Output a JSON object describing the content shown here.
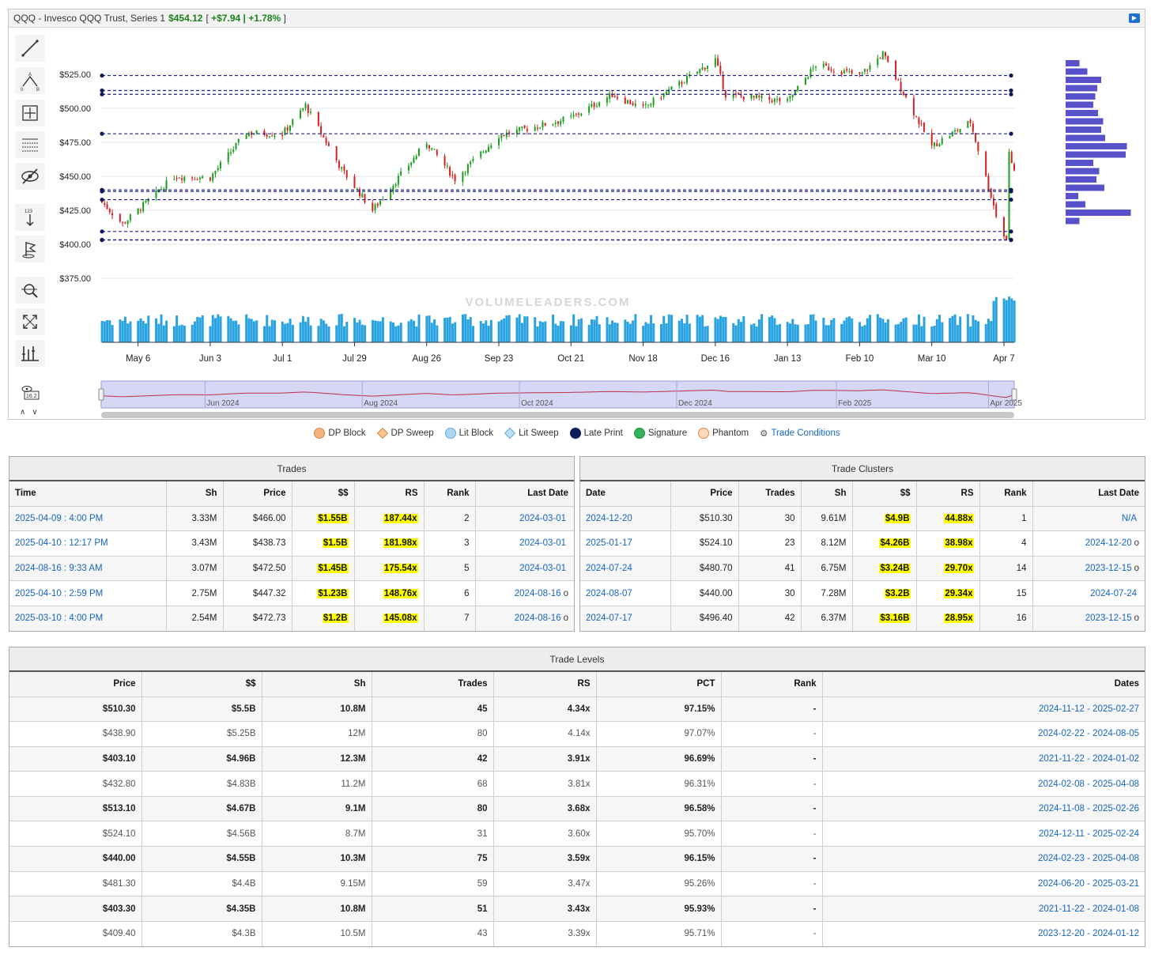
{
  "header": {
    "symbol": "QQQ - Invesco QQQ Trust, Series 1",
    "price": "$454.12",
    "change_prefix": "[ ",
    "change": "+$7.94 | +1.78%",
    "change_suffix": " ]"
  },
  "watermark": "VOLUMELEADERS.COM",
  "chart_data": {
    "type": "candlestick",
    "y_ticks": [
      "$525.00",
      "$500.00",
      "$475.00",
      "$450.00",
      "$425.00",
      "$400.00",
      "$375.00"
    ],
    "ylim": [
      375,
      540
    ],
    "x_ticks": [
      "May 6",
      "Jun 3",
      "Jul 1",
      "Jul 29",
      "Aug 26",
      "Sep 23",
      "Oct 21",
      "Nov 18",
      "Dec 16",
      "Jan 13",
      "Feb 10",
      "Mar 10",
      "Apr 7"
    ],
    "price_path": [
      {
        "date": "2024-04-22",
        "close": 431
      },
      {
        "date": "2024-04-30",
        "close": 415
      },
      {
        "date": "2024-05-06",
        "close": 425
      },
      {
        "date": "2024-05-20",
        "close": 450
      },
      {
        "date": "2024-06-03",
        "close": 449
      },
      {
        "date": "2024-06-17",
        "close": 482
      },
      {
        "date": "2024-07-01",
        "close": 481
      },
      {
        "date": "2024-07-10",
        "close": 502
      },
      {
        "date": "2024-07-24",
        "close": 455
      },
      {
        "date": "2024-08-05",
        "close": 425
      },
      {
        "date": "2024-08-26",
        "close": 475
      },
      {
        "date": "2024-09-06",
        "close": 448
      },
      {
        "date": "2024-09-23",
        "close": 480
      },
      {
        "date": "2024-10-21",
        "close": 493
      },
      {
        "date": "2024-11-06",
        "close": 510
      },
      {
        "date": "2024-11-18",
        "close": 500
      },
      {
        "date": "2024-12-16",
        "close": 536
      },
      {
        "date": "2024-12-20",
        "close": 510
      },
      {
        "date": "2025-01-13",
        "close": 505
      },
      {
        "date": "2025-01-24",
        "close": 532
      },
      {
        "date": "2025-02-10",
        "close": 524
      },
      {
        "date": "2025-02-19",
        "close": 540
      },
      {
        "date": "2025-03-10",
        "close": 472
      },
      {
        "date": "2025-03-25",
        "close": 490
      },
      {
        "date": "2025-04-04",
        "close": 422
      },
      {
        "date": "2025-04-08",
        "close": 403
      },
      {
        "date": "2025-04-09",
        "close": 466
      },
      {
        "date": "2025-04-11",
        "close": 454
      }
    ],
    "levels": [
      524.1,
      513.1,
      510.3,
      481.3,
      440.0,
      438.9,
      432.8,
      409.4,
      403.3,
      403.1
    ],
    "volume_profile": [
      0.35,
      0.55,
      0.9,
      0.8,
      0.75,
      0.7,
      0.82,
      0.95,
      0.9,
      1.0,
      1.55,
      1.52,
      0.7,
      0.85,
      0.78,
      0.98,
      0.32,
      0.5,
      1.65,
      0.35
    ],
    "overview_ticks": [
      "Jun 2024",
      "Aug 2024",
      "Oct 2024",
      "Dec 2024",
      "Feb 2025",
      "Apr 2025"
    ]
  },
  "legend": {
    "dp_block": "DP Block",
    "dp_sweep": "DP Sweep",
    "lit_block": "Lit Block",
    "lit_sweep": "Lit Sweep",
    "late_print": "Late Print",
    "signature": "Signature",
    "phantom": "Phantom",
    "trade_conditions": "Trade Conditions",
    "colors": {
      "dp_block": "#f5b27a",
      "dp_sweep": "#f7c48c",
      "lit_block": "#a8d6f5",
      "lit_sweep": "#b8e0f7",
      "late_print": "#0b1a5a",
      "signature": "#35b35a",
      "phantom": "#f5b27a"
    }
  },
  "trades": {
    "title": "Trades",
    "columns": [
      "Time",
      "Sh",
      "Price",
      "$$",
      "RS",
      "Rank",
      "Last Date"
    ],
    "rows": [
      {
        "time": "2025-04-09 : 4:00 PM",
        "sh": "3.33M",
        "price": "$466.00",
        "dollars": "$1.55B",
        "rs": "187.44x",
        "rank": "2",
        "last": "2024-03-01",
        "suffix": ""
      },
      {
        "time": "2025-04-10 : 12:17 PM",
        "sh": "3.43M",
        "price": "$438.73",
        "dollars": "$1.5B",
        "rs": "181.98x",
        "rank": "3",
        "last": "2024-03-01",
        "suffix": ""
      },
      {
        "time": "2024-08-16 : 9:33 AM",
        "sh": "3.07M",
        "price": "$472.50",
        "dollars": "$1.45B",
        "rs": "175.54x",
        "rank": "5",
        "last": "2024-03-01",
        "suffix": ""
      },
      {
        "time": "2025-04-10 : 2:59 PM",
        "sh": "2.75M",
        "price": "$447.32",
        "dollars": "$1.23B",
        "rs": "148.76x",
        "rank": "6",
        "last": "2024-08-16",
        "suffix": "o"
      },
      {
        "time": "2025-03-10 : 4:00 PM",
        "sh": "2.54M",
        "price": "$472.73",
        "dollars": "$1.2B",
        "rs": "145.08x",
        "rank": "7",
        "last": "2024-08-16",
        "suffix": "o"
      }
    ]
  },
  "clusters": {
    "title": "Trade Clusters",
    "columns": [
      "Date",
      "Price",
      "Trades",
      "Sh",
      "$$",
      "RS",
      "Rank",
      "Last Date"
    ],
    "rows": [
      {
        "date": "2024-12-20",
        "price": "$510.30",
        "trades": "30",
        "sh": "9.61M",
        "dollars": "$4.9B",
        "rs": "44.88x",
        "rank": "1",
        "last": "N/A",
        "suffix": ""
      },
      {
        "date": "2025-01-17",
        "price": "$524.10",
        "trades": "23",
        "sh": "8.12M",
        "dollars": "$4.26B",
        "rs": "38.98x",
        "rank": "4",
        "last": "2024-12-20",
        "suffix": "o"
      },
      {
        "date": "2024-07-24",
        "price": "$480.70",
        "trades": "41",
        "sh": "6.75M",
        "dollars": "$3.24B",
        "rs": "29.70x",
        "rank": "14",
        "last": "2023-12-15",
        "suffix": "o"
      },
      {
        "date": "2024-08-07",
        "price": "$440.00",
        "trades": "30",
        "sh": "7.28M",
        "dollars": "$3.2B",
        "rs": "29.34x",
        "rank": "15",
        "last": "2024-07-24",
        "suffix": ""
      },
      {
        "date": "2024-07-17",
        "price": "$496.40",
        "trades": "42",
        "sh": "6.37M",
        "dollars": "$3.16B",
        "rs": "28.95x",
        "rank": "16",
        "last": "2023-12-15",
        "suffix": "o"
      }
    ]
  },
  "levels": {
    "title": "Trade Levels",
    "columns": [
      "Price",
      "$$",
      "Sh",
      "Trades",
      "RS",
      "PCT",
      "Rank",
      "Dates"
    ],
    "rows": [
      {
        "price": "$510.30",
        "dollars": "$5.5B",
        "sh": "10.8M",
        "trades": "45",
        "rs": "4.34x",
        "pct": "97.15%",
        "rank": "-",
        "dates": "2024-11-12 - 2025-02-27"
      },
      {
        "price": "$438.90",
        "dollars": "$5.25B",
        "sh": "12M",
        "trades": "80",
        "rs": "4.14x",
        "pct": "97.07%",
        "rank": "-",
        "dates": "2024-02-22 - 2024-08-05"
      },
      {
        "price": "$403.10",
        "dollars": "$4.96B",
        "sh": "12.3M",
        "trades": "42",
        "rs": "3.91x",
        "pct": "96.69%",
        "rank": "-",
        "dates": "2021-11-22 - 2024-01-02"
      },
      {
        "price": "$432.80",
        "dollars": "$4.83B",
        "sh": "11.2M",
        "trades": "68",
        "rs": "3.81x",
        "pct": "96.31%",
        "rank": "-",
        "dates": "2024-02-08 - 2025-04-08"
      },
      {
        "price": "$513.10",
        "dollars": "$4.67B",
        "sh": "9.1M",
        "trades": "80",
        "rs": "3.68x",
        "pct": "96.58%",
        "rank": "-",
        "dates": "2024-11-08 - 2025-02-26"
      },
      {
        "price": "$524.10",
        "dollars": "$4.56B",
        "sh": "8.7M",
        "trades": "31",
        "rs": "3.60x",
        "pct": "95.70%",
        "rank": "-",
        "dates": "2024-12-11 - 2025-02-24"
      },
      {
        "price": "$440.00",
        "dollars": "$4.55B",
        "sh": "10.3M",
        "trades": "75",
        "rs": "3.59x",
        "pct": "96.15%",
        "rank": "-",
        "dates": "2024-02-23 - 2025-04-08"
      },
      {
        "price": "$481.30",
        "dollars": "$4.4B",
        "sh": "9.15M",
        "trades": "59",
        "rs": "3.47x",
        "pct": "95.26%",
        "rank": "-",
        "dates": "2024-06-20 - 2025-03-21"
      },
      {
        "price": "$403.30",
        "dollars": "$4.35B",
        "sh": "10.8M",
        "trades": "51",
        "rs": "3.43x",
        "pct": "95.93%",
        "rank": "-",
        "dates": "2021-11-22 - 2024-01-08"
      },
      {
        "price": "$409.40",
        "dollars": "$4.3B",
        "sh": "10.5M",
        "trades": "43",
        "rs": "3.39x",
        "pct": "95.71%",
        "rank": "-",
        "dates": "2023-12-20 - 2024-01-12"
      }
    ]
  },
  "toolbar_icons": [
    "line-draw-icon",
    "fibonacci-icon",
    "crosshair-icon",
    "grid-lines-icon",
    "hide-icon",
    "price-label-icon",
    "flag-icon",
    "zoom-icon",
    "fullscreen-icon",
    "indicators-icon",
    "eye-settings-icon"
  ],
  "eye_badge": "16.2",
  "price_label_badge": "123"
}
